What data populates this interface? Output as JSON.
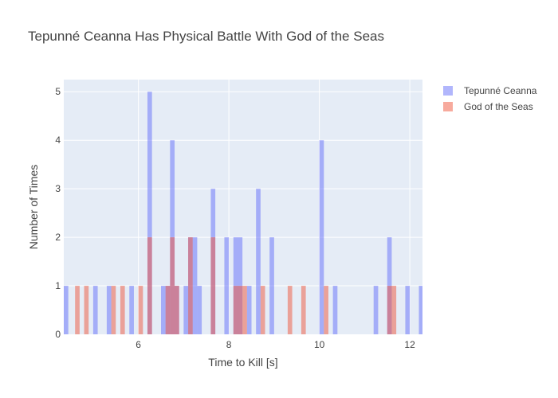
{
  "chart_data": {
    "type": "bar",
    "title": "Tepunné Ceanna Has Physical Battle With God of the Seas",
    "xlabel": "Time to Kill [s]",
    "ylabel": "Number of Times",
    "xlim": [
      4.35,
      12.28
    ],
    "ylim": [
      0,
      5.25
    ],
    "xticks": [
      6,
      8,
      10,
      12
    ],
    "yticks": [
      0,
      1,
      2,
      3,
      4,
      5
    ],
    "bin_width": 0.1,
    "grid": true,
    "legend_position": "top-right",
    "series": [
      {
        "name": "Tepunné Ceanna",
        "color": "#636efa",
        "opacity": 0.5,
        "bins": [
          {
            "x": 4.4,
            "y": 1
          },
          {
            "x": 5.05,
            "y": 1
          },
          {
            "x": 5.35,
            "y": 1
          },
          {
            "x": 5.85,
            "y": 1
          },
          {
            "x": 6.25,
            "y": 5
          },
          {
            "x": 6.55,
            "y": 1
          },
          {
            "x": 6.65,
            "y": 1
          },
          {
            "x": 6.75,
            "y": 4
          },
          {
            "x": 6.85,
            "y": 1
          },
          {
            "x": 7.05,
            "y": 1
          },
          {
            "x": 7.15,
            "y": 2
          },
          {
            "x": 7.25,
            "y": 2
          },
          {
            "x": 7.35,
            "y": 1
          },
          {
            "x": 7.65,
            "y": 3
          },
          {
            "x": 7.95,
            "y": 2
          },
          {
            "x": 8.15,
            "y": 2
          },
          {
            "x": 8.25,
            "y": 2
          },
          {
            "x": 8.45,
            "y": 1
          },
          {
            "x": 8.65,
            "y": 3
          },
          {
            "x": 8.95,
            "y": 2
          },
          {
            "x": 10.05,
            "y": 4
          },
          {
            "x": 10.35,
            "y": 1
          },
          {
            "x": 11.25,
            "y": 1
          },
          {
            "x": 11.55,
            "y": 2
          },
          {
            "x": 11.95,
            "y": 1
          },
          {
            "x": 12.25,
            "y": 1
          }
        ]
      },
      {
        "name": "God of the Seas",
        "color": "#ef553b",
        "opacity": 0.5,
        "bins": [
          {
            "x": 4.65,
            "y": 1
          },
          {
            "x": 4.85,
            "y": 1
          },
          {
            "x": 5.45,
            "y": 1
          },
          {
            "x": 5.65,
            "y": 1
          },
          {
            "x": 6.05,
            "y": 1
          },
          {
            "x": 6.25,
            "y": 2
          },
          {
            "x": 6.65,
            "y": 1
          },
          {
            "x": 6.75,
            "y": 2
          },
          {
            "x": 6.85,
            "y": 1
          },
          {
            "x": 7.15,
            "y": 2
          },
          {
            "x": 7.65,
            "y": 2
          },
          {
            "x": 8.15,
            "y": 1
          },
          {
            "x": 8.25,
            "y": 1
          },
          {
            "x": 8.35,
            "y": 1
          },
          {
            "x": 8.75,
            "y": 1
          },
          {
            "x": 9.35,
            "y": 1
          },
          {
            "x": 9.65,
            "y": 1
          },
          {
            "x": 10.15,
            "y": 1
          },
          {
            "x": 11.55,
            "y": 1
          },
          {
            "x": 11.65,
            "y": 1
          }
        ]
      }
    ]
  }
}
